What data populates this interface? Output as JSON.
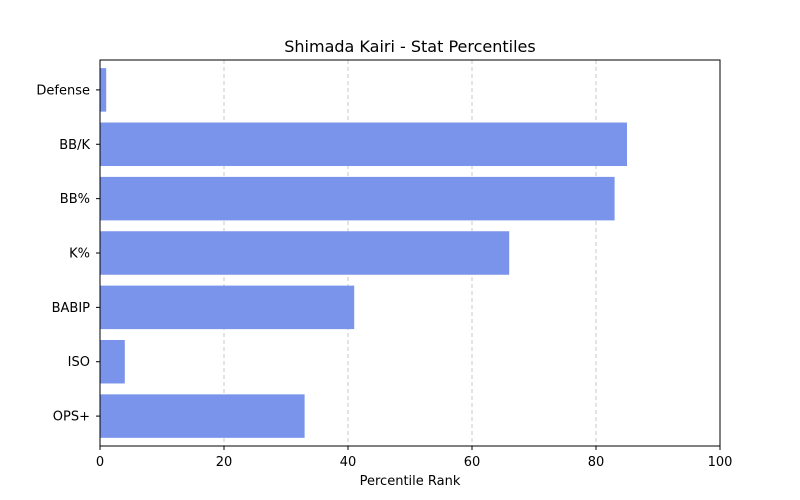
{
  "chart_data": {
    "type": "bar",
    "orientation": "horizontal",
    "title": "Shimada Kairi - Stat Percentiles",
    "xlabel": "Percentile Rank",
    "ylabel": "",
    "categories": [
      "Defense",
      "BB/K",
      "BB%",
      "K%",
      "BABIP",
      "ISO",
      "OPS+"
    ],
    "values": [
      1,
      85,
      83,
      66,
      41,
      4,
      33
    ],
    "xlim": [
      0,
      100
    ],
    "xticks": [
      "0",
      "20",
      "40",
      "60",
      "80",
      "100"
    ],
    "grid": "x-dashed",
    "bar_color": "#7994ea"
  }
}
